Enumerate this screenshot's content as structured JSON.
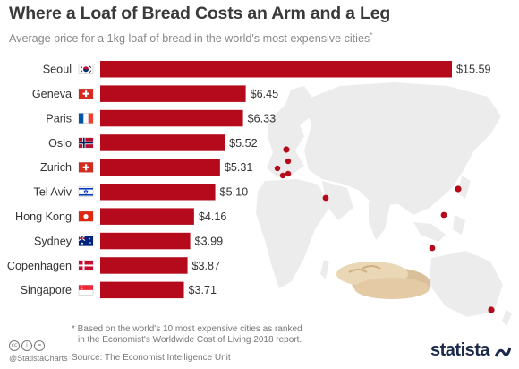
{
  "header": {
    "title": "Where a Loaf of Bread Costs an Arm and a Leg",
    "subtitle": "Average price for a 1kg loaf of bread in the world's most expensive cities",
    "subtitle_marker": "*"
  },
  "chart_data": {
    "type": "bar",
    "orientation": "horizontal",
    "categories": [
      "Seoul",
      "Geneva",
      "Paris",
      "Oslo",
      "Zurich",
      "Tel Aviv",
      "Hong Kong",
      "Sydney",
      "Copenhagen",
      "Singapore"
    ],
    "values": [
      15.59,
      6.45,
      6.33,
      5.52,
      5.31,
      5.1,
      4.16,
      3.99,
      3.87,
      3.71
    ],
    "value_labels": [
      "$15.59",
      "$6.45",
      "$6.33",
      "$5.52",
      "$5.31",
      "$5.10",
      "$4.16",
      "$3.99",
      "$3.87",
      "$3.71"
    ],
    "flags": [
      "south-korea",
      "switzerland",
      "france",
      "norway",
      "switzerland",
      "israel",
      "hong-kong",
      "australia",
      "denmark",
      "singapore"
    ],
    "bar_color": "#b40a1b",
    "xlim": [
      0,
      15.59
    ],
    "grid": false,
    "legend": "none",
    "background": "world map with red city markers"
  },
  "colors": {
    "bar": "#b40a1b",
    "map": "#ececec",
    "marker": "#b40a1b",
    "brand": "#1b2a4a"
  },
  "footer": {
    "footnote_line1": "* Based on the world's 10 most expensive cities as ranked",
    "footnote_line2": "in the Economist's Worldwide Cost of Living 2018 report.",
    "source": "Source: The Economist Intelligence Unit",
    "handle": "@StatistaCharts",
    "brand": "statista",
    "license_icons": [
      "cc-icon",
      "attribution-icon",
      "no-derivatives-icon"
    ]
  }
}
